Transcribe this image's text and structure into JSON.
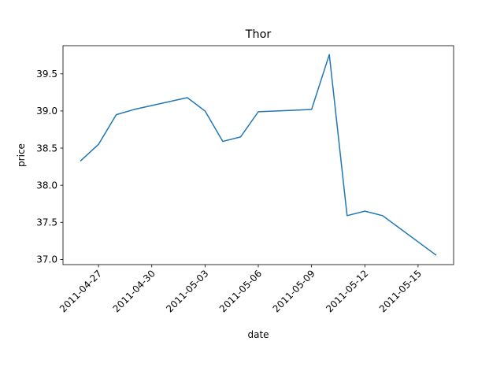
{
  "chart_data": {
    "type": "line",
    "title": "Thor",
    "xlabel": "date",
    "ylabel": "price",
    "grid": false,
    "legend": "none",
    "x_tick_labels": [
      "2011-04-27",
      "2011-04-30",
      "2011-05-03",
      "2011-05-06",
      "2011-05-09",
      "2011-05-12",
      "2011-05-15"
    ],
    "y_tick_labels": [
      "37.0",
      "37.5",
      "38.0",
      "38.5",
      "39.0",
      "39.5"
    ],
    "ylim": [
      36.93,
      39.88
    ],
    "xlim": [
      "2011-04-25",
      "2011-05-17"
    ],
    "series": [
      {
        "color": "#1f77b4",
        "points": [
          {
            "x": "2011-04-26",
            "y": 38.33
          },
          {
            "x": "2011-04-27",
            "y": 38.55
          },
          {
            "x": "2011-04-28",
            "y": 38.95
          },
          {
            "x": "2011-04-29",
            "y": 39.02
          },
          {
            "x": "2011-05-02",
            "y": 39.18
          },
          {
            "x": "2011-05-03",
            "y": 39.0
          },
          {
            "x": "2011-05-04",
            "y": 38.59
          },
          {
            "x": "2011-05-05",
            "y": 38.65
          },
          {
            "x": "2011-05-06",
            "y": 38.99
          },
          {
            "x": "2011-05-09",
            "y": 39.02
          },
          {
            "x": "2011-05-10",
            "y": 39.76
          },
          {
            "x": "2011-05-11",
            "y": 37.59
          },
          {
            "x": "2011-05-12",
            "y": 37.65
          },
          {
            "x": "2011-05-13",
            "y": 37.59
          },
          {
            "x": "2011-05-16",
            "y": 37.06
          }
        ]
      }
    ]
  }
}
